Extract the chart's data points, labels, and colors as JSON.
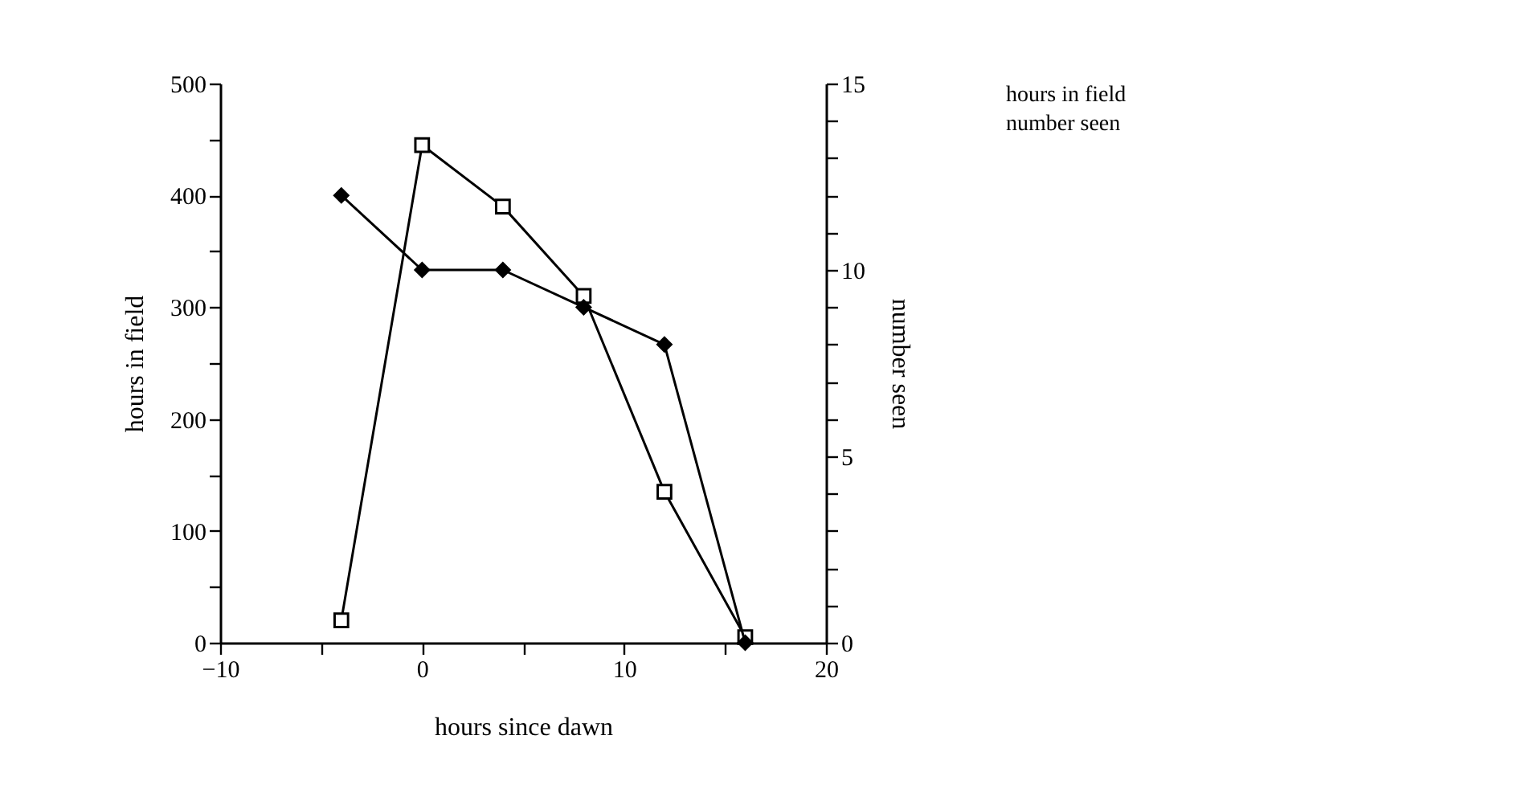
{
  "chart_data": {
    "type": "line",
    "xlabel": "hours since dawn",
    "ylabel": "hours in field",
    "y2label": "number seen",
    "x": [
      -4,
      0,
      4,
      8,
      12,
      16
    ],
    "series": [
      {
        "name": "hours in field",
        "color": "#000000",
        "marker": "square",
        "values": [
          20,
          445,
          390,
          310,
          135,
          5
        ]
      },
      {
        "name": "number seen",
        "color": "#000000",
        "marker": "diamond",
        "axis": "y2",
        "values": [
          12,
          10,
          10,
          9,
          8,
          0
        ]
      }
    ],
    "xlim": [
      -10,
      20
    ],
    "xticks": [
      -10,
      {
        "value": -5,
        "label": null
      },
      0,
      {
        "value": 5,
        "label": null
      },
      10,
      {
        "value": 15,
        "label": null
      },
      20
    ],
    "ylim": [
      0,
      500
    ],
    "yticks": [
      0,
      {
        "value": 50,
        "label": null
      },
      100,
      {
        "value": 150,
        "label": null
      },
      200,
      {
        "value": 250,
        "label": null
      },
      300,
      {
        "value": 350,
        "label": null
      },
      400,
      {
        "value": 450,
        "label": null
      },
      500
    ],
    "y2lim": [
      0,
      15
    ],
    "y2ticks": [
      0,
      {
        "value": 1,
        "label": null
      },
      {
        "value": 2,
        "label": null
      },
      {
        "value": 3,
        "label": null
      },
      {
        "value": 4,
        "label": null
      },
      5,
      {
        "value": 6,
        "label": null
      },
      {
        "value": 7,
        "label": null
      },
      {
        "value": 8,
        "label": null
      },
      {
        "value": 9,
        "label": null
      },
      10,
      {
        "value": 11,
        "label": null
      },
      {
        "value": 12,
        "label": null
      },
      {
        "value": 13,
        "label": null
      },
      {
        "value": 14,
        "label": null
      },
      15
    ],
    "grid": false,
    "legend": "right",
    "line_style": "solid"
  }
}
